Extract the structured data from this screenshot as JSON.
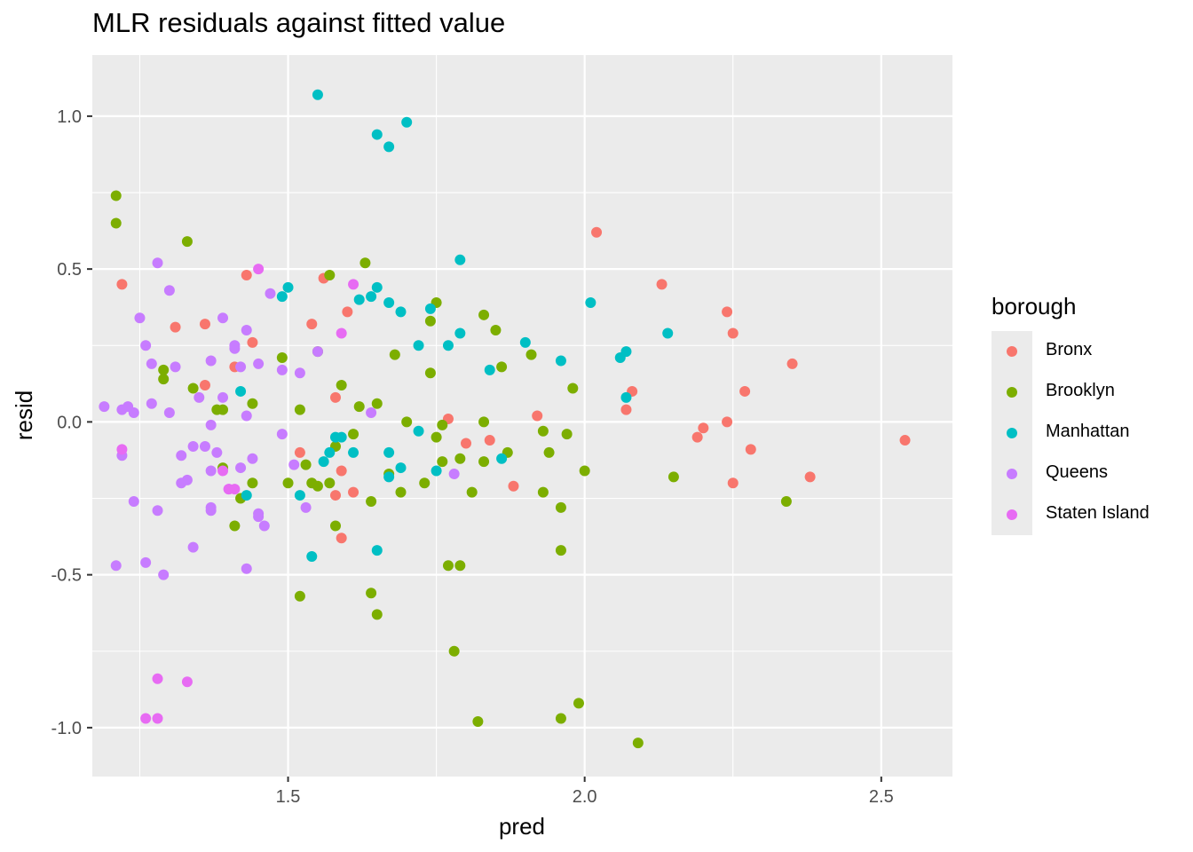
{
  "chart_data": {
    "type": "scatter",
    "title": "MLR residuals against fitted value",
    "xlabel": "pred",
    "ylabel": "resid",
    "xlim": [
      1.17,
      2.62
    ],
    "ylim": [
      -1.16,
      1.2
    ],
    "xticks": [
      1.5,
      2.0,
      2.5
    ],
    "xtick_labels": [
      "1.5",
      "2.0",
      "2.5"
    ],
    "yticks": [
      1.0,
      0.5,
      0.0,
      -0.5,
      -1.0
    ],
    "ytick_labels": [
      "1.0",
      "0.5",
      "0.0",
      "-0.5",
      "-1.0"
    ],
    "grid": true,
    "legend_title": "borough",
    "legend_position": "right",
    "series": [
      {
        "name": "Bronx",
        "color": "#F8766D",
        "points": [
          [
            1.22,
            0.45
          ],
          [
            1.31,
            0.31
          ],
          [
            1.36,
            0.32
          ],
          [
            1.36,
            0.12
          ],
          [
            1.41,
            0.18
          ],
          [
            1.43,
            0.48
          ],
          [
            1.44,
            0.26
          ],
          [
            1.54,
            0.32
          ],
          [
            1.56,
            0.47
          ],
          [
            1.58,
            0.08
          ],
          [
            1.59,
            -0.16
          ],
          [
            1.59,
            -0.38
          ],
          [
            1.6,
            0.36
          ],
          [
            1.61,
            -0.23
          ],
          [
            1.58,
            -0.24
          ],
          [
            1.52,
            -0.1
          ],
          [
            1.77,
            0.01
          ],
          [
            1.8,
            -0.07
          ],
          [
            1.84,
            -0.06
          ],
          [
            1.88,
            -0.21
          ],
          [
            1.92,
            0.02
          ],
          [
            2.02,
            0.62
          ],
          [
            2.07,
            0.04
          ],
          [
            2.08,
            0.1
          ],
          [
            2.13,
            0.45
          ],
          [
            2.19,
            -0.05
          ],
          [
            2.2,
            -0.02
          ],
          [
            2.24,
            0.0
          ],
          [
            2.24,
            0.36
          ],
          [
            2.25,
            0.29
          ],
          [
            2.25,
            -0.2
          ],
          [
            2.27,
            0.1
          ],
          [
            2.28,
            -0.09
          ],
          [
            2.35,
            0.19
          ],
          [
            2.38,
            -0.18
          ],
          [
            2.54,
            -0.06
          ]
        ]
      },
      {
        "name": "Brooklyn",
        "color": "#7CAE00",
        "points": [
          [
            1.21,
            0.74
          ],
          [
            1.21,
            0.65
          ],
          [
            1.33,
            0.59
          ],
          [
            1.29,
            0.17
          ],
          [
            1.29,
            0.14
          ],
          [
            1.34,
            0.11
          ],
          [
            1.38,
            0.04
          ],
          [
            1.39,
            -0.15
          ],
          [
            1.39,
            0.04
          ],
          [
            1.41,
            -0.34
          ],
          [
            1.42,
            -0.25
          ],
          [
            1.44,
            0.06
          ],
          [
            1.44,
            -0.2
          ],
          [
            1.49,
            0.21
          ],
          [
            1.5,
            -0.2
          ],
          [
            1.52,
            0.04
          ],
          [
            1.52,
            -0.57
          ],
          [
            1.53,
            -0.14
          ],
          [
            1.54,
            -0.2
          ],
          [
            1.55,
            -0.21
          ],
          [
            1.55,
            0.23
          ],
          [
            1.57,
            0.48
          ],
          [
            1.57,
            -0.2
          ],
          [
            1.58,
            -0.34
          ],
          [
            1.58,
            -0.08
          ],
          [
            1.59,
            0.12
          ],
          [
            1.61,
            -0.04
          ],
          [
            1.62,
            0.05
          ],
          [
            1.63,
            0.52
          ],
          [
            1.64,
            -0.26
          ],
          [
            1.64,
            -0.56
          ],
          [
            1.65,
            -0.63
          ],
          [
            1.65,
            0.06
          ],
          [
            1.67,
            -0.17
          ],
          [
            1.68,
            0.22
          ],
          [
            1.69,
            -0.23
          ],
          [
            1.7,
            0.0
          ],
          [
            1.73,
            -0.2
          ],
          [
            1.74,
            0.33
          ],
          [
            1.74,
            0.16
          ],
          [
            1.75,
            0.39
          ],
          [
            1.75,
            -0.05
          ],
          [
            1.76,
            -0.13
          ],
          [
            1.76,
            -0.01
          ],
          [
            1.77,
            -0.47
          ],
          [
            1.78,
            -0.75
          ],
          [
            1.79,
            -0.47
          ],
          [
            1.79,
            -0.12
          ],
          [
            1.81,
            -0.23
          ],
          [
            1.82,
            -0.98
          ],
          [
            1.83,
            0.35
          ],
          [
            1.83,
            -0.13
          ],
          [
            1.83,
            0.0
          ],
          [
            1.85,
            0.3
          ],
          [
            1.86,
            0.18
          ],
          [
            1.87,
            -0.1
          ],
          [
            1.91,
            0.22
          ],
          [
            1.93,
            -0.23
          ],
          [
            1.93,
            -0.03
          ],
          [
            1.94,
            -0.1
          ],
          [
            1.96,
            -0.28
          ],
          [
            1.96,
            -0.42
          ],
          [
            1.96,
            -0.97
          ],
          [
            1.97,
            -0.04
          ],
          [
            1.98,
            0.11
          ],
          [
            1.99,
            -0.92
          ],
          [
            2.0,
            -0.16
          ],
          [
            2.09,
            -1.05
          ],
          [
            2.15,
            -0.18
          ],
          [
            2.34,
            -0.26
          ]
        ]
      },
      {
        "name": "Manhattan",
        "color": "#00BFC4",
        "points": [
          [
            1.42,
            0.1
          ],
          [
            1.43,
            -0.24
          ],
          [
            1.49,
            0.41
          ],
          [
            1.5,
            0.44
          ],
          [
            1.52,
            -0.24
          ],
          [
            1.54,
            -0.44
          ],
          [
            1.55,
            1.07
          ],
          [
            1.56,
            -0.13
          ],
          [
            1.57,
            -0.1
          ],
          [
            1.58,
            -0.05
          ],
          [
            1.59,
            -0.05
          ],
          [
            1.61,
            -0.1
          ],
          [
            1.62,
            0.4
          ],
          [
            1.64,
            0.41
          ],
          [
            1.65,
            0.44
          ],
          [
            1.65,
            0.94
          ],
          [
            1.65,
            -0.42
          ],
          [
            1.67,
            0.39
          ],
          [
            1.67,
            0.9
          ],
          [
            1.67,
            -0.1
          ],
          [
            1.67,
            -0.18
          ],
          [
            1.69,
            0.36
          ],
          [
            1.69,
            -0.15
          ],
          [
            1.7,
            0.98
          ],
          [
            1.72,
            -0.03
          ],
          [
            1.72,
            0.25
          ],
          [
            1.74,
            0.37
          ],
          [
            1.75,
            -0.16
          ],
          [
            1.77,
            0.25
          ],
          [
            1.79,
            0.29
          ],
          [
            1.79,
            0.53
          ],
          [
            1.84,
            0.17
          ],
          [
            1.86,
            -0.12
          ],
          [
            1.9,
            0.26
          ],
          [
            1.96,
            0.2
          ],
          [
            2.01,
            0.39
          ],
          [
            2.06,
            0.21
          ],
          [
            2.07,
            0.23
          ],
          [
            2.07,
            0.08
          ],
          [
            2.14,
            0.29
          ]
        ]
      },
      {
        "name": "Queens",
        "color": "#C77CFF",
        "points": [
          [
            1.19,
            0.05
          ],
          [
            1.21,
            -0.47
          ],
          [
            1.22,
            0.04
          ],
          [
            1.22,
            -0.11
          ],
          [
            1.23,
            0.05
          ],
          [
            1.24,
            0.03
          ],
          [
            1.24,
            -0.26
          ],
          [
            1.25,
            0.34
          ],
          [
            1.26,
            0.25
          ],
          [
            1.26,
            -0.46
          ],
          [
            1.27,
            0.19
          ],
          [
            1.27,
            0.06
          ],
          [
            1.28,
            0.52
          ],
          [
            1.28,
            -0.29
          ],
          [
            1.29,
            -0.5
          ],
          [
            1.3,
            0.43
          ],
          [
            1.3,
            0.03
          ],
          [
            1.31,
            0.18
          ],
          [
            1.32,
            -0.2
          ],
          [
            1.32,
            -0.11
          ],
          [
            1.33,
            -0.19
          ],
          [
            1.34,
            -0.08
          ],
          [
            1.34,
            -0.41
          ],
          [
            1.35,
            0.08
          ],
          [
            1.36,
            -0.08
          ],
          [
            1.37,
            -0.16
          ],
          [
            1.37,
            -0.28
          ],
          [
            1.37,
            -0.29
          ],
          [
            1.37,
            -0.01
          ],
          [
            1.37,
            0.2
          ],
          [
            1.38,
            -0.1
          ],
          [
            1.39,
            0.08
          ],
          [
            1.39,
            0.34
          ],
          [
            1.4,
            -0.22
          ],
          [
            1.41,
            0.24
          ],
          [
            1.41,
            0.25
          ],
          [
            1.42,
            0.18
          ],
          [
            1.42,
            -0.15
          ],
          [
            1.43,
            0.3
          ],
          [
            1.43,
            0.02
          ],
          [
            1.43,
            -0.48
          ],
          [
            1.44,
            -0.12
          ],
          [
            1.45,
            -0.3
          ],
          [
            1.45,
            -0.31
          ],
          [
            1.45,
            0.19
          ],
          [
            1.46,
            -0.34
          ],
          [
            1.47,
            0.42
          ],
          [
            1.49,
            0.17
          ],
          [
            1.49,
            -0.04
          ],
          [
            1.51,
            -0.14
          ],
          [
            1.52,
            0.16
          ],
          [
            1.53,
            -0.28
          ],
          [
            1.55,
            0.23
          ],
          [
            1.64,
            0.03
          ],
          [
            1.78,
            -0.17
          ]
        ]
      },
      {
        "name": "Staten Island",
        "color": "#E76BF3",
        "points": [
          [
            1.22,
            -0.09
          ],
          [
            1.26,
            -0.97
          ],
          [
            1.28,
            -0.84
          ],
          [
            1.28,
            -0.97
          ],
          [
            1.33,
            -0.85
          ],
          [
            1.39,
            -0.16
          ],
          [
            1.4,
            -0.22
          ],
          [
            1.41,
            -0.22
          ],
          [
            1.45,
            0.5
          ],
          [
            1.59,
            0.29
          ],
          [
            1.61,
            0.45
          ]
        ]
      }
    ]
  }
}
